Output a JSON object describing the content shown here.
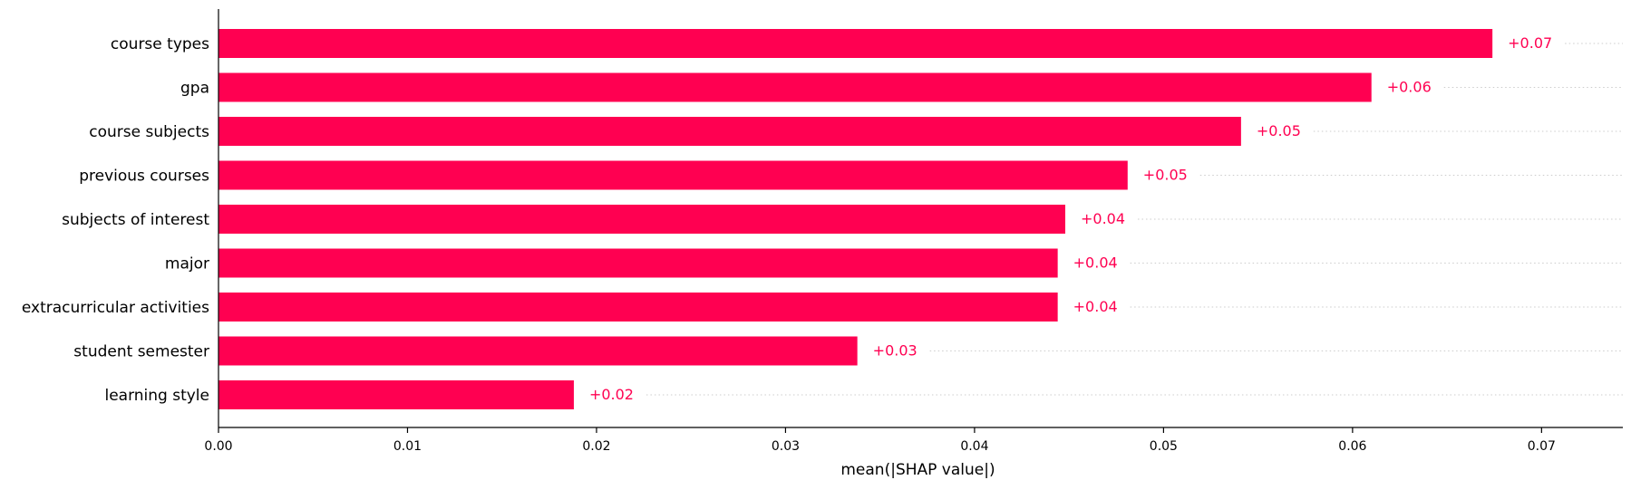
{
  "chart_data": {
    "type": "bar",
    "orientation": "horizontal",
    "categories": [
      "course types",
      "gpa",
      "course subjects",
      "previous courses",
      "subjects of interest",
      "major",
      "extracurricular activities",
      "student semester",
      "learning style"
    ],
    "values": [
      0.0674,
      0.061,
      0.0541,
      0.0481,
      0.0448,
      0.0444,
      0.0444,
      0.0338,
      0.0188
    ],
    "value_labels": [
      "+0.07",
      "+0.06",
      "+0.05",
      "+0.05",
      "+0.04",
      "+0.04",
      "+0.04",
      "+0.03",
      "+0.02"
    ],
    "xlabel": "mean(|SHAP value|)",
    "ylabel": "",
    "title": "",
    "xlim": [
      0,
      0.0743
    ],
    "xticks": [
      0.0,
      0.01,
      0.02,
      0.03,
      0.04,
      0.05,
      0.06,
      0.07
    ],
    "xtick_labels": [
      "0.00",
      "0.01",
      "0.02",
      "0.03",
      "0.04",
      "0.05",
      "0.06",
      "0.07"
    ],
    "grid": false,
    "row_guides": "dotted",
    "colors": {
      "bar": "#ff0051",
      "value_label": "#ff0051",
      "axis": "#000000",
      "guide": "#cccccc"
    }
  }
}
